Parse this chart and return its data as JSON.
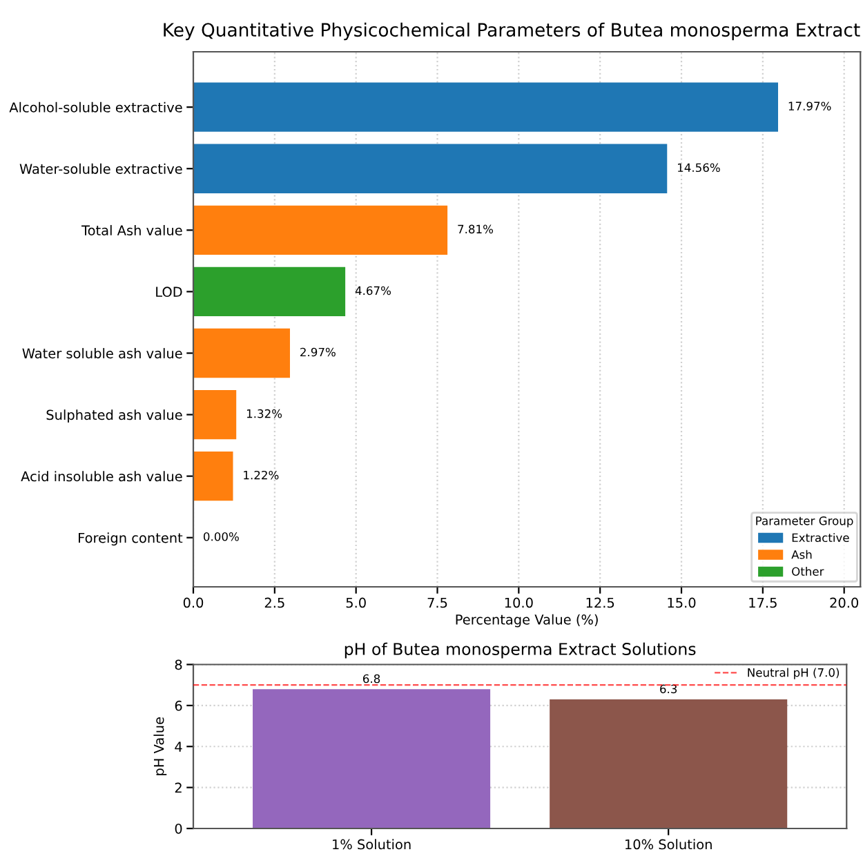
{
  "chart_data": [
    {
      "type": "bar",
      "orientation": "horizontal",
      "title": "Key Quantitative Physicochemical Parameters of Butea monosperma Extract",
      "xlabel": "Percentage Value (%)",
      "categories": [
        "Alcohol-soluble extractive",
        "Water-soluble extractive",
        "Total Ash value",
        "LOD",
        "Water soluble ash value",
        "Sulphated ash value",
        "Acid insoluble ash value",
        "Foreign content"
      ],
      "series": [
        {
          "name": "Extractive",
          "color": "#1f77b4",
          "values": [
            17.97,
            14.56,
            null,
            null,
            null,
            null,
            null,
            null
          ],
          "value_labels": [
            "17.97%",
            "14.56%",
            null,
            null,
            null,
            null,
            null,
            null
          ]
        },
        {
          "name": "Ash",
          "color": "#ff7f0e",
          "values": [
            null,
            null,
            7.81,
            null,
            2.97,
            1.32,
            1.22,
            0.0
          ],
          "value_labels": [
            null,
            null,
            "7.81%",
            null,
            "2.97%",
            "1.32%",
            "1.22%",
            "0.00%"
          ]
        },
        {
          "name": "Other",
          "color": "#2ca02c",
          "values": [
            null,
            null,
            null,
            4.67,
            null,
            null,
            null,
            null
          ],
          "value_labels": [
            null,
            null,
            null,
            "4.67%",
            null,
            null,
            null,
            null
          ]
        }
      ],
      "xlim": [
        0,
        20.5
      ],
      "xticks": [
        {
          "value": 0,
          "label": "0.0"
        },
        {
          "value": 2.5,
          "label": "2.5"
        },
        {
          "value": 5,
          "label": "5.0"
        },
        {
          "value": 7.5,
          "label": "7.5"
        },
        {
          "value": 10,
          "label": "10.0"
        },
        {
          "value": 12.5,
          "label": "12.5"
        },
        {
          "value": 15,
          "label": "15.0"
        },
        {
          "value": 17.5,
          "label": "17.5"
        },
        {
          "value": 20,
          "label": "20.0"
        }
      ],
      "grid": "x",
      "legend": "bottom right",
      "legend_title": "Parameter Group"
    },
    {
      "type": "bar",
      "title": "pH of Butea monosperma Extract Solutions",
      "ylabel": "pH Value",
      "categories": [
        "1% Solution",
        "10% Solution"
      ],
      "values": [
        6.8,
        6.3
      ],
      "colors": [
        "#9467bd",
        "#8c564b"
      ],
      "data_labels": true,
      "ylim": [
        0,
        8
      ],
      "yticks": [
        0,
        2,
        4,
        6,
        8
      ],
      "grid": "y",
      "legend": "top right",
      "ref_lines": [
        {
          "axis": "y",
          "value": 7.0,
          "label": "Neutral pH (7.0)",
          "color": "#ff0000",
          "line_style": "dashed"
        }
      ]
    }
  ]
}
